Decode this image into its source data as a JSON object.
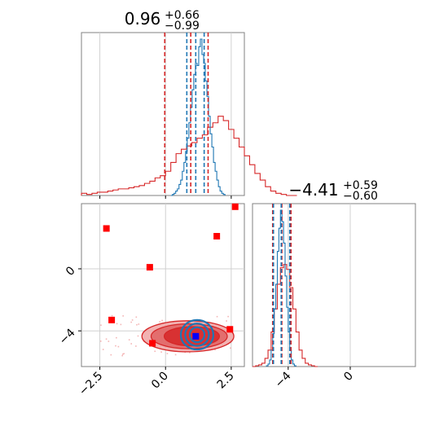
{
  "chart_data": [
    {
      "panel": "marginal-x",
      "type": "histogram",
      "title": {
        "value": "0.96",
        "plus": "+0.66",
        "minus": "−0.99"
      },
      "xlim": [
        -3.2,
        3.0
      ],
      "grid": true,
      "red_quantiles": [
        -0.03,
        0.96,
        1.62
      ],
      "blue_quantiles": [
        0.81,
        1.15,
        1.47
      ],
      "series": [
        {
          "color": "#d62728",
          "bin_start": -3.2,
          "bin_width": 0.2,
          "values": [
            2,
            1,
            2,
            3,
            3,
            4,
            5,
            6,
            6,
            7,
            8,
            9,
            11,
            13,
            16,
            18,
            22,
            30,
            38,
            42,
            45,
            48,
            52,
            55,
            62,
            66,
            72,
            68,
            60,
            52,
            44,
            36,
            28,
            20,
            14,
            8,
            4,
            2,
            1,
            0,
            0
          ]
        },
        {
          "color": "#1f77b4",
          "bin_start": 0.2,
          "bin_width": 0.0625,
          "values": [
            0,
            1,
            2,
            4,
            6,
            10,
            14,
            22,
            30,
            40,
            52,
            66,
            80,
            96,
            110,
            120,
            118,
            135,
            142,
            128,
            120,
            104,
            90,
            72,
            56,
            44,
            30,
            22,
            14,
            8,
            4,
            2,
            1
          ]
        }
      ]
    },
    {
      "panel": "joint",
      "type": "scatter",
      "xlim": [
        -3.2,
        3.0
      ],
      "ylim": [
        -6.3,
        4.2
      ],
      "xticks": [
        -2.5,
        0.0,
        2.5
      ],
      "xtick_labels": [
        "−2.5",
        "0.0",
        "2.5"
      ],
      "yticks": [
        -4,
        0
      ],
      "ytick_labels": [
        "−4",
        "0"
      ],
      "grid": true,
      "red_points": [
        {
          "x": -2.25,
          "y": 2.6
        },
        {
          "x": 1.95,
          "y": 2.1
        },
        {
          "x": -0.6,
          "y": 0.1
        },
        {
          "x": -2.05,
          "y": -3.3
        },
        {
          "x": -0.5,
          "y": -4.8
        },
        {
          "x": 2.45,
          "y": -3.9
        },
        {
          "x": 2.65,
          "y": 4.0
        }
      ],
      "blue_point": {
        "x": 1.15,
        "y": -4.35
      },
      "red_contours": [
        {
          "cx": 0.85,
          "cy": -4.35,
          "rx": 1.75,
          "ry": 1.0
        },
        {
          "cx": 0.9,
          "cy": -4.35,
          "rx": 1.45,
          "ry": 0.8
        },
        {
          "cx": 1.0,
          "cy": -4.35,
          "rx": 1.05,
          "ry": 0.62
        }
      ],
      "blue_contours": [
        {
          "cx": 1.2,
          "cy": -4.25,
          "rx": 0.62,
          "ry": 0.95
        },
        {
          "cx": 1.2,
          "cy": -4.25,
          "rx": 0.45,
          "ry": 0.72
        },
        {
          "cx": 1.2,
          "cy": -4.25,
          "rx": 0.28,
          "ry": 0.48
        }
      ]
    },
    {
      "panel": "marginal-y",
      "type": "histogram",
      "title": {
        "value": "−4.41",
        "plus": "+0.59",
        "minus": "−0.60"
      },
      "xlim": [
        -6.3,
        4.2
      ],
      "xticks": [
        -4,
        0
      ],
      "xtick_labels": [
        "−4",
        "0"
      ],
      "grid": true,
      "red_quantiles": [
        -5.0,
        -4.41,
        -3.82
      ],
      "blue_quantiles": [
        -4.95,
        -4.45,
        -3.9
      ],
      "series": [
        {
          "color": "#d62728",
          "bin_start": -6.3,
          "bin_width": 0.2,
          "values": [
            0,
            1,
            2,
            4,
            10,
            20,
            42,
            70,
            100,
            120,
            124,
            118,
            96,
            70,
            42,
            20,
            10,
            4,
            2,
            1,
            0
          ]
        },
        {
          "color": "#1f77b4",
          "bin_start": -5.4,
          "bin_width": 0.1,
          "values": [
            1,
            3,
            8,
            20,
            40,
            70,
            100,
            140,
            168,
            190,
            176,
            150,
            110,
            72,
            42,
            20,
            8,
            3,
            1
          ]
        }
      ]
    }
  ]
}
